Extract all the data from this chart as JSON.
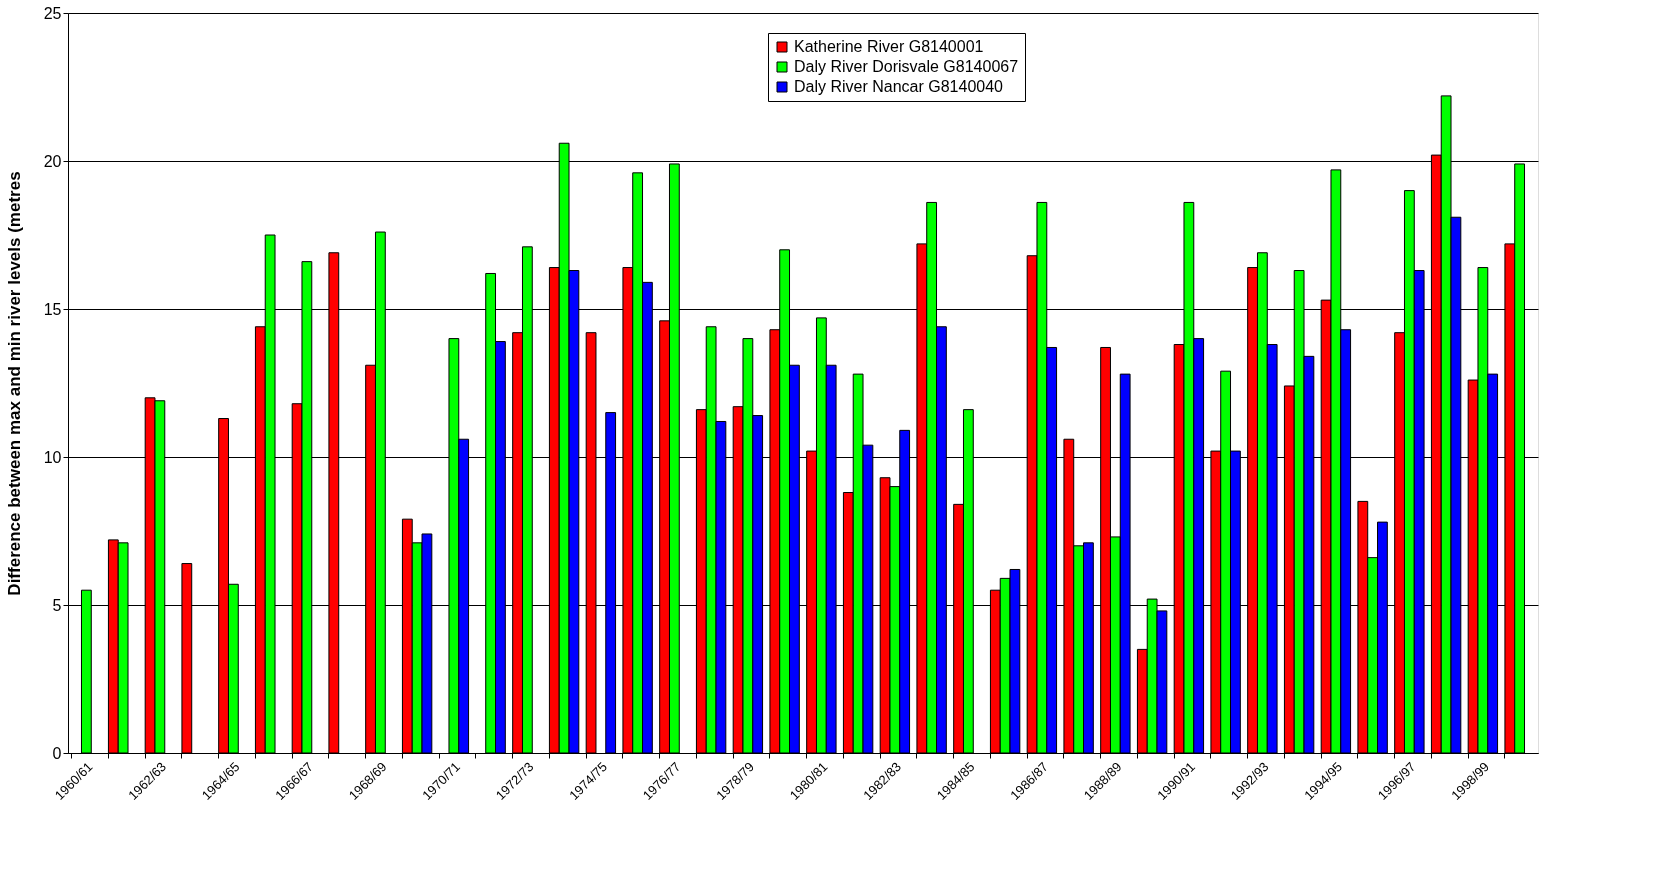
{
  "chart_data": {
    "type": "bar",
    "ylabel": "Difference between max and min river levels (metres",
    "categories": [
      "1960/61",
      null,
      "1962/63",
      null,
      "1964/65",
      null,
      "1966/67",
      null,
      "1968/69",
      null,
      "1970/71",
      null,
      "1972/73",
      null,
      "1974/75",
      null,
      "1976/77",
      null,
      "1978/79",
      null,
      "1980/81",
      null,
      "1982/83",
      null,
      "1984/85",
      null,
      "1986/87",
      null,
      "1988/89",
      null,
      "1990/91",
      null,
      "1992/93",
      null,
      "1994/95",
      null,
      "1996/97",
      null,
      "1998/99",
      null
    ],
    "series": [
      {
        "name": "Katherine River G8140001",
        "color": "#ff0000",
        "values": [
          null,
          7.2,
          12.0,
          6.4,
          11.3,
          14.4,
          11.8,
          16.9,
          13.1,
          7.9,
          null,
          null,
          14.2,
          16.4,
          14.2,
          16.4,
          14.6,
          11.6,
          11.7,
          14.3,
          10.2,
          8.8,
          9.3,
          17.2,
          8.4,
          5.5,
          16.8,
          10.6,
          13.7,
          3.5,
          13.8,
          10.2,
          16.4,
          12.4,
          15.3,
          8.5,
          14.2,
          20.2,
          12.6,
          17.2
        ]
      },
      {
        "name": "Daly River Dorisvale G8140067",
        "color": "#00ff00",
        "values": [
          5.5,
          7.1,
          11.9,
          null,
          5.7,
          17.5,
          16.6,
          null,
          17.6,
          7.1,
          14.0,
          16.2,
          17.1,
          20.6,
          null,
          19.6,
          19.9,
          14.4,
          14.0,
          17.0,
          14.7,
          12.8,
          9.0,
          18.6,
          11.6,
          5.9,
          18.6,
          7.0,
          7.3,
          5.2,
          18.6,
          12.9,
          16.9,
          16.3,
          19.7,
          6.6,
          19.0,
          22.2,
          16.4,
          19.9
        ]
      },
      {
        "name": "Daly River Nancar G8140040",
        "color": "#0000ff",
        "values": [
          null,
          null,
          null,
          null,
          null,
          null,
          null,
          null,
          null,
          7.4,
          10.6,
          13.9,
          null,
          16.3,
          11.5,
          15.9,
          null,
          11.2,
          11.4,
          13.1,
          13.1,
          10.4,
          10.9,
          14.4,
          null,
          6.2,
          13.7,
          7.1,
          12.8,
          4.8,
          14.0,
          10.2,
          13.8,
          13.4,
          14.3,
          7.8,
          16.3,
          18.1,
          12.8,
          null
        ]
      }
    ],
    "ylim": [
      0,
      25
    ],
    "yticks": [
      0,
      5,
      10,
      15,
      20,
      25
    ],
    "grid": "y",
    "legend": "top"
  }
}
